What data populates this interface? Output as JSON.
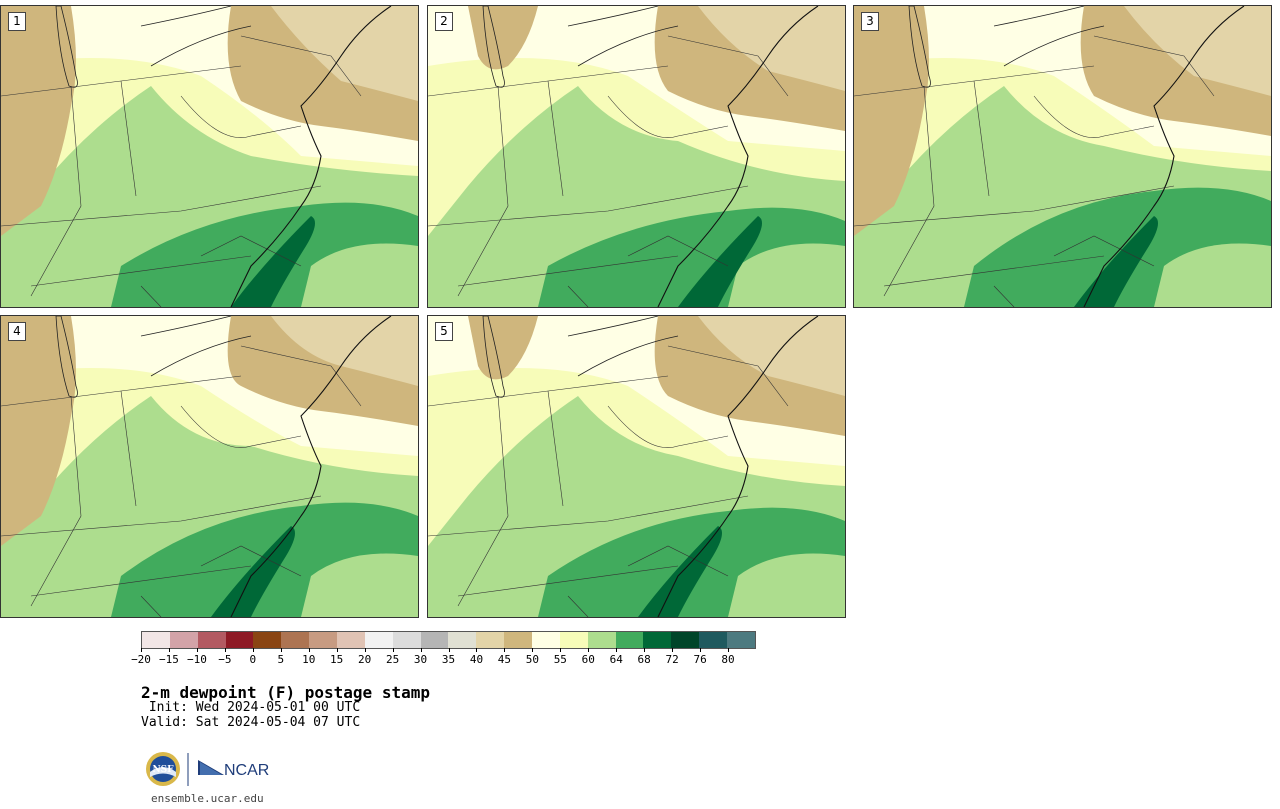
{
  "panels": [
    {
      "label": "1"
    },
    {
      "label": "2"
    },
    {
      "label": "3"
    },
    {
      "label": "4"
    },
    {
      "label": "5"
    }
  ],
  "colorbar": {
    "colors": [
      "#f2e6e6",
      "#d3a3a8",
      "#b35a62",
      "#8e1a25",
      "#8a4513",
      "#ad7452",
      "#c79b82",
      "#e0c3b4",
      "#f2f2f2",
      "#dcdcdc",
      "#b5b5b5",
      "#e0e0d3",
      "#e3d4a8",
      "#cfb67d",
      "#ffffe5",
      "#f7fcb9",
      "#addd8e",
      "#41ab5d",
      "#006837",
      "#004529",
      "#1f5a5f",
      "#4d7a80"
    ],
    "tick_labels": [
      "−20",
      "−15",
      "−10",
      "−5",
      "0",
      "5",
      "10",
      "15",
      "20",
      "25",
      "30",
      "35",
      "40",
      "45",
      "50",
      "55",
      "60",
      "64",
      "68",
      "72",
      "76",
      "80"
    ]
  },
  "title": "2-m dewpoint (F) postage stamp",
  "init": " Init: Wed 2024-05-01 00 UTC",
  "valid": "Valid: Sat 2024-05-04 07 UTC",
  "logos": {
    "left": "NSF",
    "right": "NCAR"
  },
  "site": "ensemble.ucar.edu",
  "fields": {
    "dry_tan": "#cfb67d",
    "tan_light": "#e3d4a8",
    "cream": "#ffffe5",
    "light_yellow": "#f7fcb9",
    "light_green": "#addd8e",
    "green": "#41ab5d",
    "dark_green": "#006837"
  }
}
